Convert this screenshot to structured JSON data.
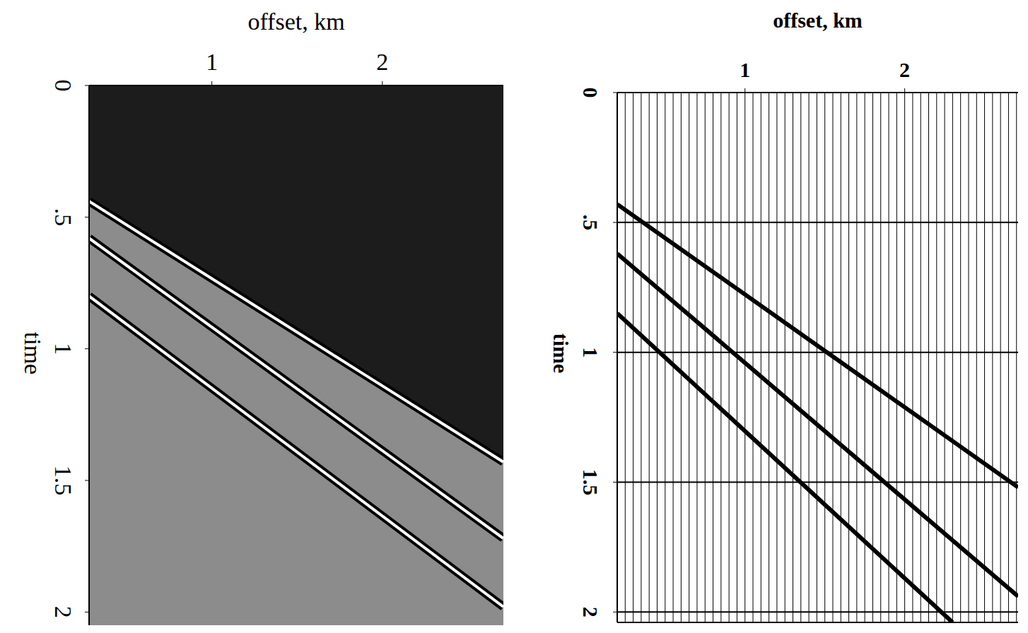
{
  "chart_data": [
    {
      "type": "raster",
      "x_label": "offset, km",
      "y_label": "time",
      "xlim": [
        0.28,
        2.71
      ],
      "ylim": [
        0,
        2.05
      ],
      "xticks": [
        1,
        2
      ],
      "yticks": [
        0,
        {
          "value": 0.5,
          "label": ".5"
        },
        1,
        1.5,
        2
      ],
      "events": [
        {
          "x": [
            0.28,
            2.71
          ],
          "values": [
            0.44,
            1.43
          ]
        },
        {
          "x": [
            0.28,
            2.71
          ],
          "values": [
            0.58,
            1.72
          ]
        },
        {
          "x": [
            0.28,
            2.71
          ],
          "values": [
            0.8,
            1.98
          ]
        }
      ]
    },
    {
      "type": "wiggle",
      "x_label": "offset, km",
      "y_label": "time",
      "xlim": [
        0.2,
        2.71
      ],
      "ylim": [
        0,
        2.04
      ],
      "xticks": [
        1,
        2
      ],
      "yticks": [
        0,
        {
          "value": 0.5,
          "label": ".5"
        },
        1,
        1.5,
        2
      ],
      "grid": true,
      "traces": [
        0.25,
        0.3,
        0.35,
        0.4,
        0.45,
        0.5,
        0.55,
        0.6,
        0.65,
        0.7,
        0.75,
        0.8,
        0.85,
        0.9,
        0.95,
        1.0,
        1.05,
        1.1,
        1.15,
        1.2,
        1.25,
        1.3,
        1.35,
        1.4,
        1.45,
        1.5,
        1.55,
        1.6,
        1.65,
        1.7,
        1.75,
        1.8,
        1.85,
        1.9,
        1.95,
        2.0,
        2.05,
        2.1,
        2.15,
        2.2,
        2.25,
        2.3,
        2.35,
        2.4,
        2.45,
        2.5,
        2.55,
        2.6,
        2.65,
        2.7
      ],
      "events": [
        {
          "x": [
            0.2,
            2.71
          ],
          "values": [
            0.43,
            1.52
          ]
        },
        {
          "x": [
            0.2,
            2.71
          ],
          "values": [
            0.62,
            1.94
          ]
        },
        {
          "x": [
            0.2,
            2.3
          ],
          "values": [
            0.85,
            2.04
          ]
        }
      ]
    }
  ]
}
